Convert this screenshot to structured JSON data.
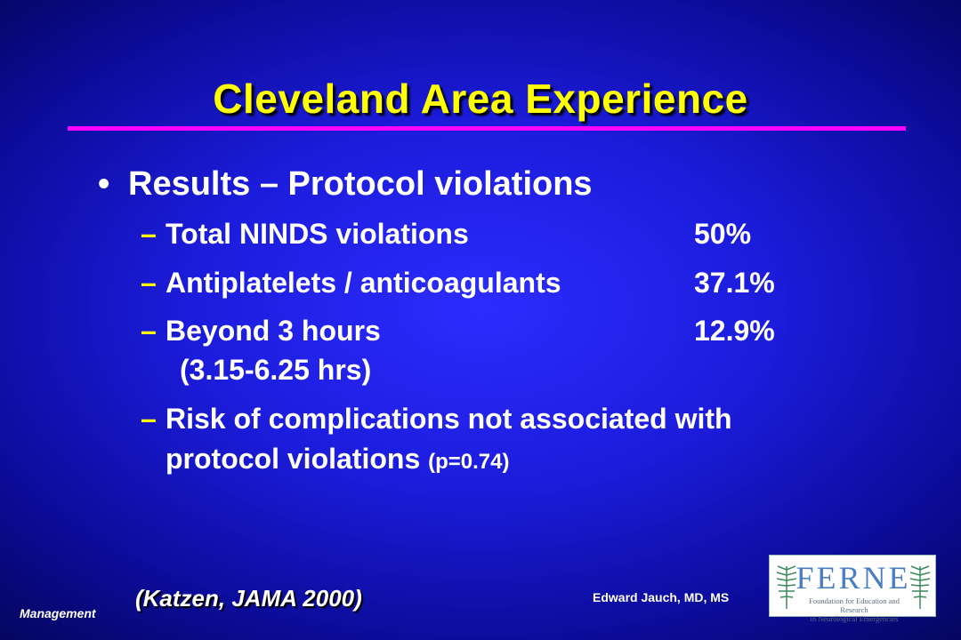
{
  "title": "Cleveland Area Experience",
  "bullet": {
    "symbol": "•",
    "text": "Results – Protocol violations"
  },
  "items": [
    {
      "label": "Total NINDS violations",
      "value": "50%"
    },
    {
      "label": "Antiplatelets / anticoagulants",
      "value": "37.1%"
    },
    {
      "label": "Beyond 3 hours",
      "value": "12.9%",
      "detail": "(3.15-6.25 hrs)"
    },
    {
      "label": "Risk of complications not associated with",
      "label2": "protocol violations",
      "note": "(p=0.74)"
    }
  ],
  "dash": "–",
  "citation": "(Katzen, JAMA 2000)",
  "footer": {
    "left": "Management",
    "right": "Edward Jauch, MD, MS"
  },
  "logo": {
    "letters": "FERNE",
    "line1": "Foundation for Education and Research",
    "line2": "in Neurological Emergencies",
    "icon": "palm-leaf-icon"
  },
  "colors": {
    "title": "#ffff00",
    "rule": "#ff00ff",
    "dash": "#ffff00",
    "background": "#1c1cdc"
  }
}
